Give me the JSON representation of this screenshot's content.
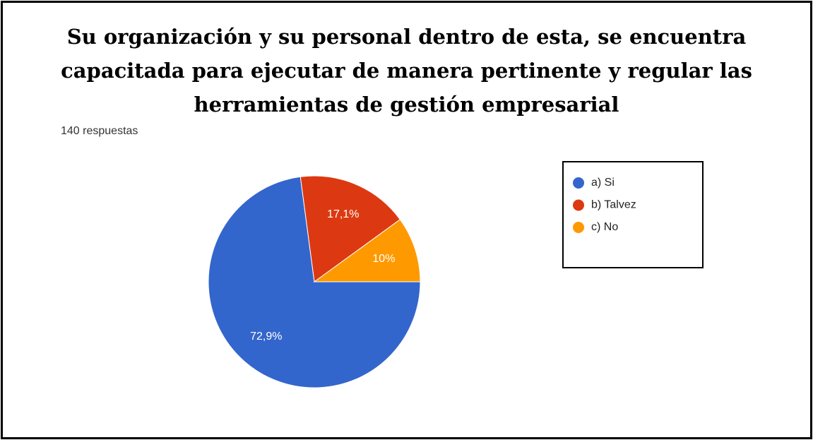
{
  "chart_data": {
    "type": "pie",
    "title": "Su organización y su personal dentro de esta, se encuentra capacitada para ejecutar de manera pertinente y regular las herramientas de gestión empresarial",
    "subtitle": "140 respuestas",
    "categories": [
      "a) Si",
      "b) Talvez",
      "c) No"
    ],
    "values": [
      72.9,
      17.1,
      10
    ],
    "value_labels": [
      "72,9%",
      "17,1%",
      "10%"
    ],
    "colors": [
      "#3366cc",
      "#dc3912",
      "#ff9900"
    ]
  }
}
